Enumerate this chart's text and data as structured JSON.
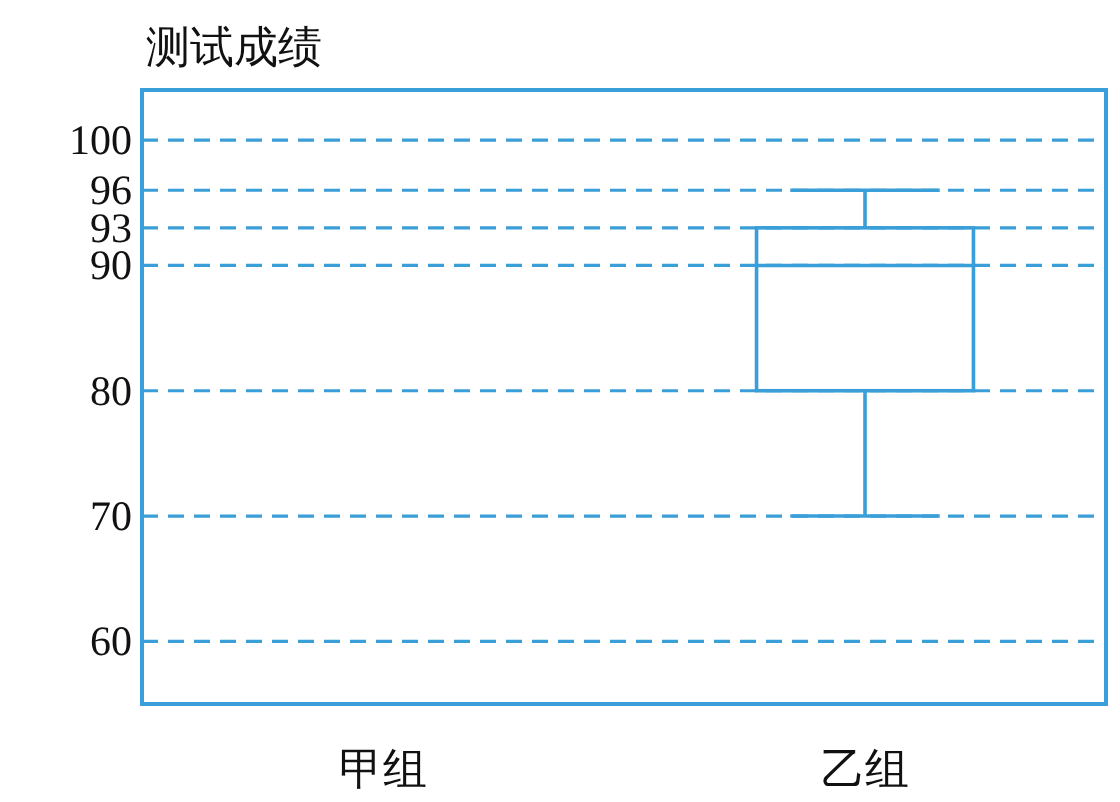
{
  "chart_data": {
    "type": "box",
    "ylabel": "测试成绩",
    "categories": [
      "甲组",
      "乙组"
    ],
    "series": [
      {
        "color": "#3a9fd8",
        "boxes": [
          null,
          {
            "low": 70,
            "q1": 80,
            "median": 90,
            "q3": 93,
            "high": 96
          }
        ]
      }
    ],
    "ylim": [
      55,
      104
    ],
    "yticks": [
      60,
      70,
      80,
      90,
      93,
      96,
      100
    ],
    "grid": "y"
  }
}
